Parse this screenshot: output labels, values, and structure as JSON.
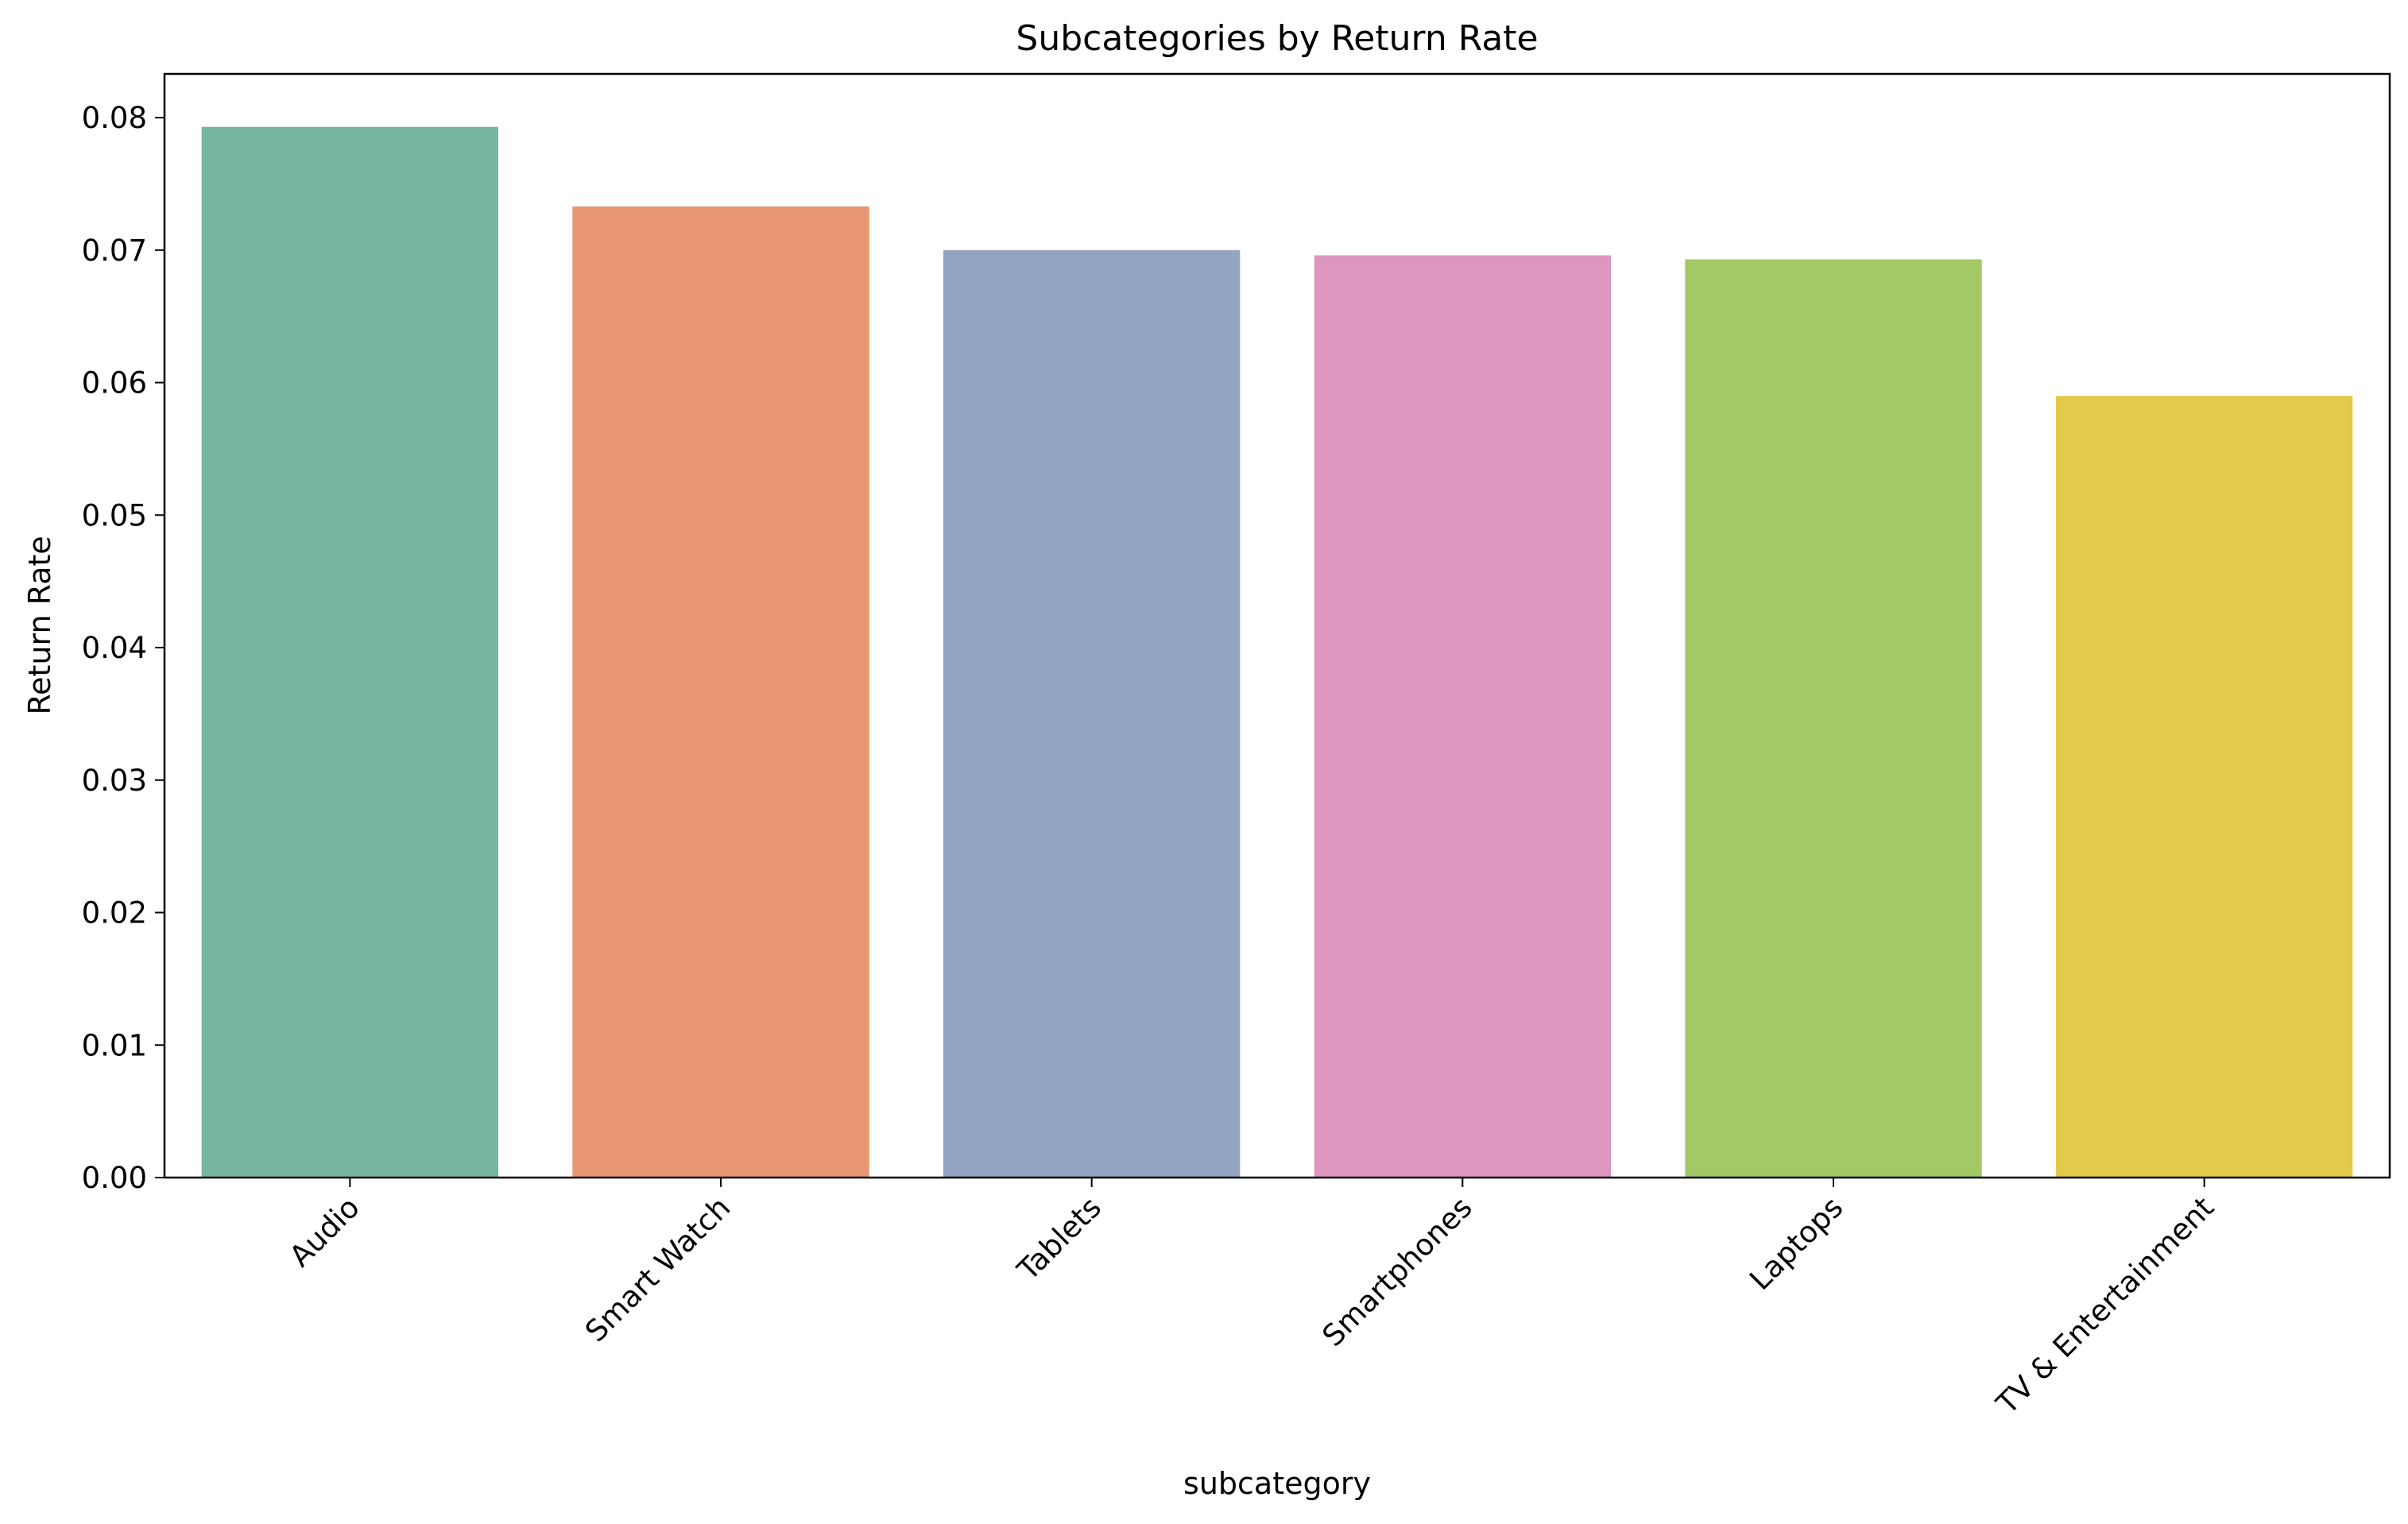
{
  "chart_data": {
    "type": "bar",
    "title": "Subcategories by Return Rate",
    "xlabel": "subcategory",
    "ylabel": "Return Rate",
    "categories": [
      "Audio",
      "Smart Watch",
      "Tablets",
      "Smartphones",
      "Laptops",
      "TV & Entertainment"
    ],
    "values": [
      0.0793,
      0.0733,
      0.07,
      0.0696,
      0.0693,
      0.059
    ],
    "colors": [
      "#76b5a0",
      "#e99675",
      "#94a4c3",
      "#dc96c0",
      "#a3c866",
      "#e4ca4a"
    ],
    "ylim": [
      0,
      0.0833
    ],
    "yticks": [
      "0.00",
      "0.01",
      "0.02",
      "0.03",
      "0.04",
      "0.05",
      "0.06",
      "0.07",
      "0.08"
    ],
    "grid": false,
    "legend": "none"
  }
}
